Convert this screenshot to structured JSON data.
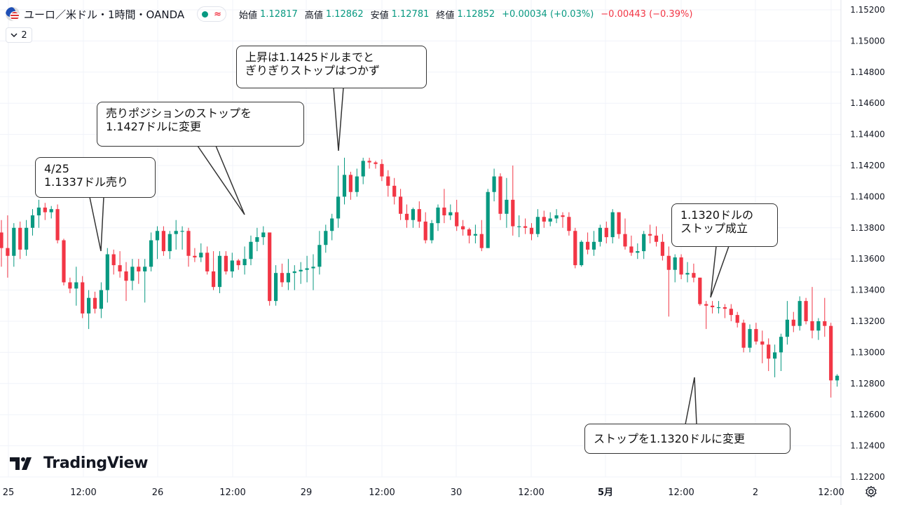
{
  "header": {
    "title": "ユーロ／米ドル・1時間・OANDA",
    "approx_symbol": "≈",
    "open_label": "始値",
    "open_value": "1.12817",
    "high_label": "高値",
    "high_value": "1.12862",
    "low_label": "安値",
    "low_value": "1.12781",
    "close_label": "終値",
    "close_value": "1.12852",
    "change": "+0.00034 (+0.03%)",
    "change2": "−0.00443 (−0.39%)"
  },
  "collapse": {
    "count": "2"
  },
  "brand": {
    "name": "TradingView"
  },
  "colors": {
    "up": "#089981",
    "down": "#f23645",
    "grid": "#f0f3fa",
    "axis_text": "#131722"
  },
  "callouts": [
    {
      "text": "4/25\n1.1337ドル売り"
    },
    {
      "text": "売りポジションのストップを\n1.1427ドルに変更"
    },
    {
      "text": "上昇は1.1425ドルまでと\nぎりぎりストップはつかず"
    },
    {
      "text": "1.1320ドルの\nストップ成立"
    },
    {
      "text": "ストップを1.1320ドルに変更"
    }
  ],
  "chart_data": {
    "type": "candlestick",
    "ylim": [
      1.122,
      1.152
    ],
    "y_ticks": [
      "1.15200",
      "1.15000",
      "1.14800",
      "1.14600",
      "1.14400",
      "1.14200",
      "1.14000",
      "1.13800",
      "1.13600",
      "1.13400",
      "1.13200",
      "1.13000",
      "1.12800",
      "1.12600",
      "1.12400",
      "1.12200"
    ],
    "x_ticks": [
      "25",
      "12:00",
      "26",
      "12:00",
      "29",
      "12:00",
      "30",
      "12:00",
      "5月",
      "12:00",
      "2",
      "12:00"
    ],
    "candles": [
      {
        "o": 1.1377,
        "h": 1.1385,
        "l": 1.1355,
        "c": 1.1367
      },
      {
        "o": 1.1367,
        "h": 1.1388,
        "l": 1.1348,
        "c": 1.1362
      },
      {
        "o": 1.1362,
        "h": 1.1383,
        "l": 1.1355,
        "c": 1.138
      },
      {
        "o": 1.138,
        "h": 1.1384,
        "l": 1.136,
        "c": 1.1366
      },
      {
        "o": 1.1366,
        "h": 1.1385,
        "l": 1.1362,
        "c": 1.138
      },
      {
        "o": 1.138,
        "h": 1.1392,
        "l": 1.1375,
        "c": 1.1388
      },
      {
        "o": 1.1388,
        "h": 1.1398,
        "l": 1.138,
        "c": 1.1393
      },
      {
        "o": 1.1393,
        "h": 1.1396,
        "l": 1.1385,
        "c": 1.139
      },
      {
        "o": 1.139,
        "h": 1.1394,
        "l": 1.1386,
        "c": 1.1392
      },
      {
        "o": 1.1392,
        "h": 1.1395,
        "l": 1.137,
        "c": 1.1372
      },
      {
        "o": 1.1372,
        "h": 1.1373,
        "l": 1.1343,
        "c": 1.1345
      },
      {
        "o": 1.1345,
        "h": 1.1348,
        "l": 1.1338,
        "c": 1.1341
      },
      {
        "o": 1.1341,
        "h": 1.1355,
        "l": 1.133,
        "c": 1.1345
      },
      {
        "o": 1.1345,
        "h": 1.1349,
        "l": 1.1322,
        "c": 1.1325
      },
      {
        "o": 1.1325,
        "h": 1.134,
        "l": 1.1315,
        "c": 1.1335
      },
      {
        "o": 1.1335,
        "h": 1.1339,
        "l": 1.1325,
        "c": 1.1328
      },
      {
        "o": 1.1328,
        "h": 1.1345,
        "l": 1.1322,
        "c": 1.134
      },
      {
        "o": 1.134,
        "h": 1.1367,
        "l": 1.1332,
        "c": 1.1363
      },
      {
        "o": 1.1363,
        "h": 1.1366,
        "l": 1.135,
        "c": 1.1356
      },
      {
        "o": 1.1356,
        "h": 1.1365,
        "l": 1.1348,
        "c": 1.1352
      },
      {
        "o": 1.1352,
        "h": 1.1358,
        "l": 1.1333,
        "c": 1.1346
      },
      {
        "o": 1.1346,
        "h": 1.136,
        "l": 1.134,
        "c": 1.1355
      },
      {
        "o": 1.1355,
        "h": 1.136,
        "l": 1.1344,
        "c": 1.1352
      },
      {
        "o": 1.1352,
        "h": 1.136,
        "l": 1.1332,
        "c": 1.1355
      },
      {
        "o": 1.1355,
        "h": 1.1377,
        "l": 1.1352,
        "c": 1.1372
      },
      {
        "o": 1.1372,
        "h": 1.1381,
        "l": 1.136,
        "c": 1.1378
      },
      {
        "o": 1.1378,
        "h": 1.1381,
        "l": 1.1362,
        "c": 1.1365
      },
      {
        "o": 1.1365,
        "h": 1.1378,
        "l": 1.136,
        "c": 1.1376
      },
      {
        "o": 1.1376,
        "h": 1.1385,
        "l": 1.1366,
        "c": 1.1378
      },
      {
        "o": 1.1378,
        "h": 1.1381,
        "l": 1.1366,
        "c": 1.1378
      },
      {
        "o": 1.1378,
        "h": 1.138,
        "l": 1.1355,
        "c": 1.1362
      },
      {
        "o": 1.1362,
        "h": 1.1367,
        "l": 1.1358,
        "c": 1.1361
      },
      {
        "o": 1.1361,
        "h": 1.137,
        "l": 1.1358,
        "c": 1.1364
      },
      {
        "o": 1.1364,
        "h": 1.1368,
        "l": 1.135,
        "c": 1.1352
      },
      {
        "o": 1.1352,
        "h": 1.1365,
        "l": 1.134,
        "c": 1.1342
      },
      {
        "o": 1.1342,
        "h": 1.1365,
        "l": 1.1338,
        "c": 1.1362
      },
      {
        "o": 1.1362,
        "h": 1.1365,
        "l": 1.135,
        "c": 1.1352
      },
      {
        "o": 1.1352,
        "h": 1.1364,
        "l": 1.1348,
        "c": 1.1359
      },
      {
        "o": 1.1359,
        "h": 1.136,
        "l": 1.1353,
        "c": 1.1356
      },
      {
        "o": 1.1356,
        "h": 1.1368,
        "l": 1.135,
        "c": 1.136
      },
      {
        "o": 1.136,
        "h": 1.1375,
        "l": 1.1356,
        "c": 1.1371
      },
      {
        "o": 1.1371,
        "h": 1.138,
        "l": 1.1365,
        "c": 1.1374
      },
      {
        "o": 1.1374,
        "h": 1.1381,
        "l": 1.1369,
        "c": 1.1377
      },
      {
        "o": 1.1377,
        "h": 1.1377,
        "l": 1.133,
        "c": 1.1333
      },
      {
        "o": 1.1333,
        "h": 1.1356,
        "l": 1.133,
        "c": 1.1351
      },
      {
        "o": 1.1351,
        "h": 1.1357,
        "l": 1.1342,
        "c": 1.1345
      },
      {
        "o": 1.1345,
        "h": 1.136,
        "l": 1.134,
        "c": 1.1351
      },
      {
        "o": 1.1351,
        "h": 1.1356,
        "l": 1.134,
        "c": 1.1352
      },
      {
        "o": 1.1352,
        "h": 1.1358,
        "l": 1.1344,
        "c": 1.1353
      },
      {
        "o": 1.1353,
        "h": 1.1362,
        "l": 1.1345,
        "c": 1.1354
      },
      {
        "o": 1.1354,
        "h": 1.1363,
        "l": 1.134,
        "c": 1.1355
      },
      {
        "o": 1.1355,
        "h": 1.1378,
        "l": 1.135,
        "c": 1.1369
      },
      {
        "o": 1.1369,
        "h": 1.1382,
        "l": 1.1364,
        "c": 1.1378
      },
      {
        "o": 1.1378,
        "h": 1.1389,
        "l": 1.1372,
        "c": 1.1386
      },
      {
        "o": 1.1386,
        "h": 1.142,
        "l": 1.138,
        "c": 1.14
      },
      {
        "o": 1.14,
        "h": 1.1425,
        "l": 1.1395,
        "c": 1.1414
      },
      {
        "o": 1.1414,
        "h": 1.1416,
        "l": 1.1398,
        "c": 1.1403
      },
      {
        "o": 1.1403,
        "h": 1.1418,
        "l": 1.14,
        "c": 1.1413
      },
      {
        "o": 1.1413,
        "h": 1.1425,
        "l": 1.1408,
        "c": 1.1423
      },
      {
        "o": 1.1423,
        "h": 1.1425,
        "l": 1.1418,
        "c": 1.1422
      },
      {
        "o": 1.1422,
        "h": 1.1423,
        "l": 1.1418,
        "c": 1.1421
      },
      {
        "o": 1.1421,
        "h": 1.1424,
        "l": 1.141,
        "c": 1.1413
      },
      {
        "o": 1.1413,
        "h": 1.1417,
        "l": 1.14,
        "c": 1.1407
      },
      {
        "o": 1.1407,
        "h": 1.1412,
        "l": 1.1395,
        "c": 1.14
      },
      {
        "o": 1.14,
        "h": 1.1405,
        "l": 1.1385,
        "c": 1.1389
      },
      {
        "o": 1.1389,
        "h": 1.1395,
        "l": 1.138,
        "c": 1.1385
      },
      {
        "o": 1.1385,
        "h": 1.1393,
        "l": 1.138,
        "c": 1.1392
      },
      {
        "o": 1.1392,
        "h": 1.1397,
        "l": 1.138,
        "c": 1.1384
      },
      {
        "o": 1.1384,
        "h": 1.139,
        "l": 1.137,
        "c": 1.1372
      },
      {
        "o": 1.1372,
        "h": 1.1385,
        "l": 1.137,
        "c": 1.1383
      },
      {
        "o": 1.1383,
        "h": 1.1395,
        "l": 1.1378,
        "c": 1.1393
      },
      {
        "o": 1.1393,
        "h": 1.1405,
        "l": 1.1383,
        "c": 1.1388
      },
      {
        "o": 1.1388,
        "h": 1.1395,
        "l": 1.1385,
        "c": 1.139
      },
      {
        "o": 1.139,
        "h": 1.1398,
        "l": 1.1378,
        "c": 1.1381
      },
      {
        "o": 1.1381,
        "h": 1.1385,
        "l": 1.1375,
        "c": 1.1379
      },
      {
        "o": 1.1379,
        "h": 1.138,
        "l": 1.137,
        "c": 1.1375
      },
      {
        "o": 1.1375,
        "h": 1.1382,
        "l": 1.137,
        "c": 1.1376
      },
      {
        "o": 1.1376,
        "h": 1.1385,
        "l": 1.1365,
        "c": 1.1367
      },
      {
        "o": 1.1367,
        "h": 1.1405,
        "l": 1.1367,
        "c": 1.1403
      },
      {
        "o": 1.1403,
        "h": 1.1418,
        "l": 1.1397,
        "c": 1.1413
      },
      {
        "o": 1.1413,
        "h": 1.1415,
        "l": 1.1385,
        "c": 1.1389
      },
      {
        "o": 1.1389,
        "h": 1.1412,
        "l": 1.138,
        "c": 1.1398
      },
      {
        "o": 1.1398,
        "h": 1.142,
        "l": 1.1375,
        "c": 1.1381
      },
      {
        "o": 1.1381,
        "h": 1.1388,
        "l": 1.1374,
        "c": 1.1381
      },
      {
        "o": 1.1381,
        "h": 1.1386,
        "l": 1.1376,
        "c": 1.138
      },
      {
        "o": 1.138,
        "h": 1.1383,
        "l": 1.1372,
        "c": 1.1376
      },
      {
        "o": 1.1376,
        "h": 1.1392,
        "l": 1.1374,
        "c": 1.1387
      },
      {
        "o": 1.1387,
        "h": 1.1391,
        "l": 1.138,
        "c": 1.1384
      },
      {
        "o": 1.1384,
        "h": 1.139,
        "l": 1.1381,
        "c": 1.1386
      },
      {
        "o": 1.1386,
        "h": 1.1392,
        "l": 1.1383,
        "c": 1.1388
      },
      {
        "o": 1.1388,
        "h": 1.139,
        "l": 1.138,
        "c": 1.1387
      },
      {
        "o": 1.1387,
        "h": 1.139,
        "l": 1.1375,
        "c": 1.1378
      },
      {
        "o": 1.1378,
        "h": 1.138,
        "l": 1.1354,
        "c": 1.1356
      },
      {
        "o": 1.1356,
        "h": 1.1372,
        "l": 1.1355,
        "c": 1.1371
      },
      {
        "o": 1.1371,
        "h": 1.1377,
        "l": 1.1363,
        "c": 1.1366
      },
      {
        "o": 1.1366,
        "h": 1.1378,
        "l": 1.1362,
        "c": 1.1371
      },
      {
        "o": 1.1371,
        "h": 1.1382,
        "l": 1.1368,
        "c": 1.138
      },
      {
        "o": 1.138,
        "h": 1.1384,
        "l": 1.137,
        "c": 1.1374
      },
      {
        "o": 1.1374,
        "h": 1.1392,
        "l": 1.137,
        "c": 1.139
      },
      {
        "o": 1.139,
        "h": 1.139,
        "l": 1.1373,
        "c": 1.1376
      },
      {
        "o": 1.1376,
        "h": 1.1386,
        "l": 1.1366,
        "c": 1.1368
      },
      {
        "o": 1.1368,
        "h": 1.1375,
        "l": 1.1362,
        "c": 1.1364
      },
      {
        "o": 1.1364,
        "h": 1.137,
        "l": 1.136,
        "c": 1.1365
      },
      {
        "o": 1.1365,
        "h": 1.1378,
        "l": 1.136,
        "c": 1.1376
      },
      {
        "o": 1.1376,
        "h": 1.1382,
        "l": 1.137,
        "c": 1.1375
      },
      {
        "o": 1.1375,
        "h": 1.1381,
        "l": 1.1368,
        "c": 1.1371
      },
      {
        "o": 1.1371,
        "h": 1.1376,
        "l": 1.1359,
        "c": 1.1362
      },
      {
        "o": 1.1362,
        "h": 1.1368,
        "l": 1.1323,
        "c": 1.1353
      },
      {
        "o": 1.1353,
        "h": 1.1363,
        "l": 1.1345,
        "c": 1.1361
      },
      {
        "o": 1.1361,
        "h": 1.1363,
        "l": 1.1347,
        "c": 1.135
      },
      {
        "o": 1.135,
        "h": 1.1358,
        "l": 1.1345,
        "c": 1.1351
      },
      {
        "o": 1.1351,
        "h": 1.1357,
        "l": 1.1345,
        "c": 1.1348
      },
      {
        "o": 1.1348,
        "h": 1.1348,
        "l": 1.133,
        "c": 1.1331
      },
      {
        "o": 1.1331,
        "h": 1.1333,
        "l": 1.1315,
        "c": 1.133
      },
      {
        "o": 1.133,
        "h": 1.1333,
        "l": 1.1325,
        "c": 1.1329
      },
      {
        "o": 1.1329,
        "h": 1.1333,
        "l": 1.1325,
        "c": 1.1329
      },
      {
        "o": 1.1329,
        "h": 1.1331,
        "l": 1.1322,
        "c": 1.1328
      },
      {
        "o": 1.1328,
        "h": 1.1331,
        "l": 1.132,
        "c": 1.1324
      },
      {
        "o": 1.1324,
        "h": 1.1326,
        "l": 1.1316,
        "c": 1.1319
      },
      {
        "o": 1.1319,
        "h": 1.1321,
        "l": 1.13,
        "c": 1.1303
      },
      {
        "o": 1.1303,
        "h": 1.1318,
        "l": 1.13,
        "c": 1.1315
      },
      {
        "o": 1.1315,
        "h": 1.1319,
        "l": 1.1305,
        "c": 1.1307
      },
      {
        "o": 1.1307,
        "h": 1.1314,
        "l": 1.1293,
        "c": 1.1305
      },
      {
        "o": 1.1305,
        "h": 1.1309,
        "l": 1.1288,
        "c": 1.1296
      },
      {
        "o": 1.1296,
        "h": 1.1305,
        "l": 1.1284,
        "c": 1.13
      },
      {
        "o": 1.13,
        "h": 1.1312,
        "l": 1.1288,
        "c": 1.131
      },
      {
        "o": 1.131,
        "h": 1.1333,
        "l": 1.1305,
        "c": 1.1321
      },
      {
        "o": 1.1321,
        "h": 1.1326,
        "l": 1.1313,
        "c": 1.1317
      },
      {
        "o": 1.1317,
        "h": 1.1336,
        "l": 1.1314,
        "c": 1.1333
      },
      {
        "o": 1.1333,
        "h": 1.1335,
        "l": 1.1318,
        "c": 1.132
      },
      {
        "o": 1.132,
        "h": 1.1342,
        "l": 1.1309,
        "c": 1.1314
      },
      {
        "o": 1.1314,
        "h": 1.1322,
        "l": 1.1308,
        "c": 1.132
      },
      {
        "o": 1.132,
        "h": 1.1335,
        "l": 1.131,
        "c": 1.1317
      },
      {
        "o": 1.1317,
        "h": 1.1319,
        "l": 1.1271,
        "c": 1.1282
      },
      {
        "o": 1.1282,
        "h": 1.1286,
        "l": 1.1278,
        "c": 1.1285
      }
    ]
  }
}
